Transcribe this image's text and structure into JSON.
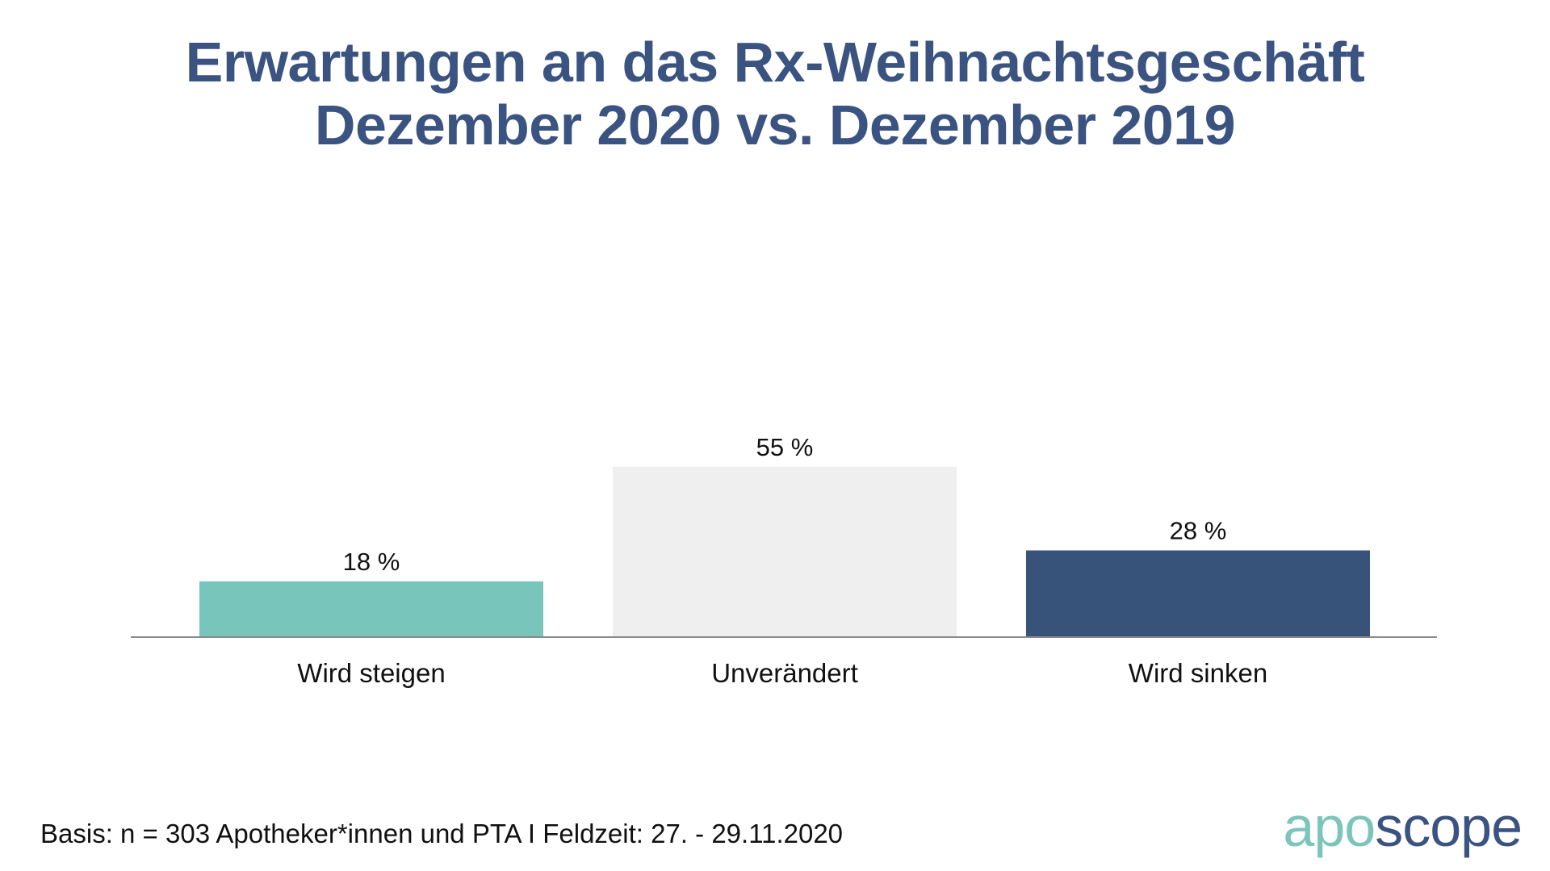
{
  "title": {
    "line1": "Erwartungen an das Rx-Weihnachtsgeschäft",
    "line2": "Dezember 2020 vs. Dezember 2019"
  },
  "footnote": "Basis: n = 303 Apotheker*innen und PTA I Feldzeit: 27. - 29.11.2020",
  "logo": {
    "part1": "apo",
    "part2": "scope"
  },
  "colors": {
    "title": "#3b5380",
    "bar_steigen": "#78c5bb",
    "bar_unveraendert": "#efefef",
    "bar_sinken": "#38537a",
    "axis": "#8a8a8a",
    "logo_apo": "#7cc5bb",
    "logo_scope": "#3b5380"
  },
  "chart_data": {
    "type": "bar",
    "categories": [
      "Wird steigen",
      "Unverändert",
      "Wird sinken"
    ],
    "values": [
      18,
      55,
      28
    ],
    "value_labels": [
      "18 %",
      "55 %",
      "28 %"
    ],
    "bar_colors": [
      "#78c5bb",
      "#efefef",
      "#38537a"
    ],
    "ylim": [
      0,
      100
    ],
    "grid": false,
    "legend": "none"
  }
}
